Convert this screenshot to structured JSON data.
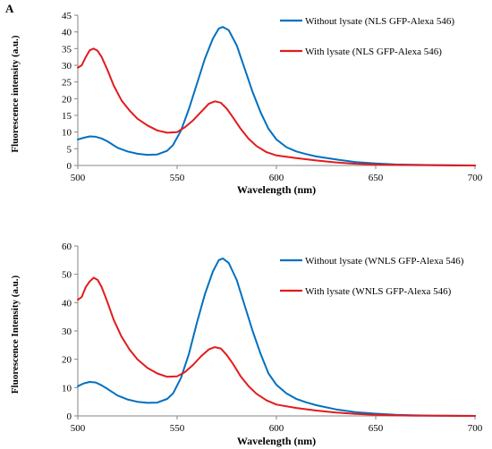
{
  "panel_label": "A",
  "chart_data": [
    {
      "type": "line",
      "title": "",
      "xlabel": "Wavelength (nm)",
      "ylabel": "Fluorescence intensity (a.u.)",
      "xlim": [
        500,
        700
      ],
      "ylim": [
        0,
        45
      ],
      "xticks": [
        500,
        550,
        600,
        650,
        700
      ],
      "yticks": [
        0,
        5,
        10,
        15,
        20,
        25,
        30,
        35,
        40,
        45
      ],
      "grid": false,
      "legend_position": "top-right",
      "series": [
        {
          "name": "Without lysate (NLS GFP-Alexa 546)",
          "color": "#0070c0",
          "x": [
            500,
            503,
            506,
            509,
            512,
            515,
            520,
            525,
            530,
            535,
            540,
            545,
            548,
            552,
            556,
            560,
            564,
            568,
            571,
            573,
            576,
            580,
            584,
            588,
            592,
            596,
            600,
            605,
            610,
            615,
            620,
            630,
            640,
            650,
            660,
            670,
            680,
            690,
            700
          ],
          "values": [
            7.8,
            8.3,
            8.7,
            8.6,
            8.1,
            7.2,
            5.3,
            4.2,
            3.5,
            3.2,
            3.3,
            4.4,
            6.2,
            10.5,
            17.0,
            24.5,
            32.0,
            38.0,
            41.0,
            41.5,
            40.5,
            36.0,
            29.0,
            22.0,
            16.0,
            11.0,
            7.8,
            5.5,
            4.2,
            3.4,
            2.7,
            1.8,
            1.0,
            0.6,
            0.3,
            0.2,
            0.1,
            0.05,
            0.0
          ]
        },
        {
          "name": "With lysate (NLS GFP-Alexa 546)",
          "color": "#e31a1c",
          "x": [
            500,
            502,
            504,
            506,
            508,
            510,
            512,
            515,
            518,
            522,
            526,
            530,
            535,
            540,
            545,
            550,
            554,
            558,
            562,
            566,
            569,
            572,
            575,
            578,
            582,
            586,
            590,
            595,
            600,
            610,
            620,
            630,
            640,
            650,
            660,
            670,
            680,
            690,
            700
          ],
          "values": [
            29.3,
            30.0,
            32.5,
            34.5,
            35.0,
            34.3,
            32.5,
            28.5,
            24.0,
            19.5,
            16.5,
            14.0,
            12.0,
            10.5,
            9.8,
            10.0,
            11.5,
            13.5,
            16.0,
            18.5,
            19.2,
            18.8,
            17.0,
            14.5,
            11.0,
            8.0,
            5.8,
            4.0,
            3.0,
            2.2,
            1.5,
            0.9,
            0.5,
            0.3,
            0.15,
            0.1,
            0.05,
            0.0,
            0.0
          ]
        }
      ]
    },
    {
      "type": "line",
      "title": "",
      "xlabel": "Wavelength (nm)",
      "ylabel": "Fluorescence Intensity (a.u.)",
      "xlim": [
        500,
        700
      ],
      "ylim": [
        0,
        60
      ],
      "xticks": [
        500,
        550,
        600,
        650,
        700
      ],
      "yticks": [
        0,
        10,
        20,
        30,
        40,
        50,
        60
      ],
      "grid": false,
      "legend_position": "top-right",
      "series": [
        {
          "name": "Without lysate (WNLS GFP-Alexa 546)",
          "color": "#0070c0",
          "x": [
            500,
            503,
            506,
            509,
            512,
            515,
            520,
            525,
            530,
            535,
            540,
            545,
            548,
            552,
            556,
            560,
            564,
            568,
            571,
            573,
            576,
            580,
            584,
            588,
            592,
            596,
            600,
            605,
            610,
            615,
            620,
            630,
            640,
            650,
            660,
            670,
            680,
            690,
            700
          ],
          "values": [
            10.5,
            11.5,
            12.0,
            11.8,
            10.8,
            9.5,
            7.2,
            5.8,
            5.0,
            4.6,
            4.7,
            6.0,
            8.0,
            13.5,
            22.0,
            33.0,
            43.0,
            51.0,
            55.0,
            55.6,
            54.0,
            48.0,
            39.0,
            30.0,
            22.0,
            15.0,
            11.0,
            8.0,
            6.0,
            4.8,
            3.8,
            2.3,
            1.3,
            0.8,
            0.4,
            0.2,
            0.1,
            0.05,
            0.0
          ]
        },
        {
          "name": "With lysate (WNLS GFP-Alexa 546)",
          "color": "#e31a1c",
          "x": [
            500,
            502,
            504,
            506,
            508,
            510,
            512,
            515,
            518,
            522,
            526,
            530,
            535,
            540,
            545,
            550,
            554,
            558,
            562,
            566,
            569,
            572,
            575,
            578,
            582,
            586,
            590,
            595,
            600,
            610,
            620,
            630,
            640,
            650,
            660,
            670,
            680,
            690,
            700
          ],
          "values": [
            41.0,
            42.0,
            45.5,
            47.5,
            48.8,
            48.0,
            45.5,
            40.0,
            34.0,
            28.0,
            23.5,
            20.0,
            17.0,
            15.0,
            13.8,
            14.0,
            15.5,
            18.0,
            21.0,
            23.5,
            24.3,
            23.8,
            21.5,
            18.5,
            14.0,
            10.5,
            7.8,
            5.5,
            4.0,
            2.8,
            1.9,
            1.2,
            0.7,
            0.4,
            0.2,
            0.1,
            0.05,
            0.0,
            0.0
          ]
        }
      ]
    }
  ]
}
